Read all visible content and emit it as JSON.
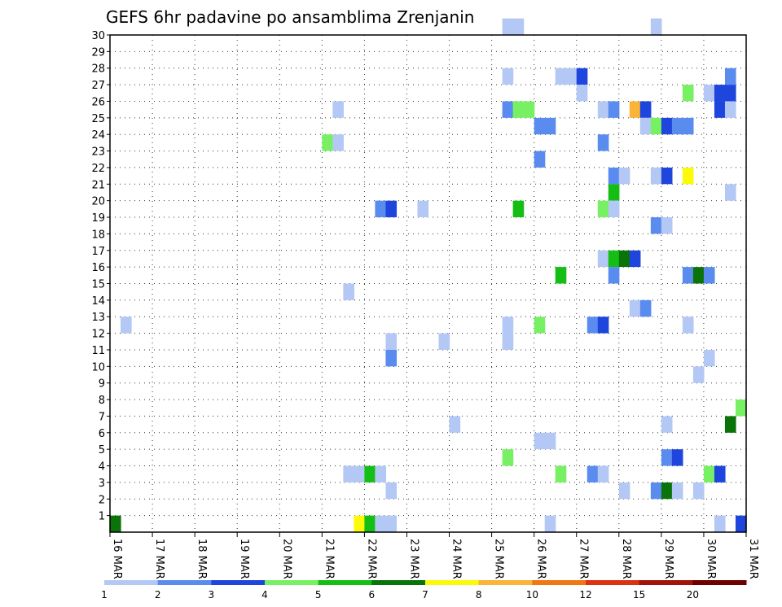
{
  "chart_data": {
    "type": "heatmap",
    "title": "GEFS 6hr padavine po ansamblima Zrenjanin",
    "xlabel": "",
    "ylabel": "",
    "x_ticks": [
      "16 MAR",
      "17 MAR",
      "18 MAR",
      "19 MAR",
      "20 MAR",
      "21 MAR",
      "22 MAR",
      "23 MAR",
      "24 MAR",
      "25 MAR",
      "26 MAR",
      "27 MAR",
      "28 MAR",
      "29 MAR",
      "30 MAR",
      "31 MAR"
    ],
    "y_ticks": [
      1,
      2,
      3,
      4,
      5,
      6,
      7,
      8,
      9,
      10,
      11,
      12,
      13,
      14,
      15,
      16,
      17,
      18,
      19,
      20,
      21,
      22,
      23,
      24,
      25,
      26,
      27,
      28,
      29,
      30
    ],
    "x_range": [
      0,
      15
    ],
    "y_range": [
      0,
      30
    ],
    "step_days": 0.25,
    "grid": true,
    "colorbar": {
      "tick_labels": [
        "1",
        "2",
        "3",
        "4",
        "5",
        "6",
        "7",
        "8",
        "10",
        "12",
        "15",
        "20"
      ],
      "colors": [
        "#b4c8f5",
        "#5a8cf0",
        "#1e46dc",
        "#78f064",
        "#14be14",
        "#0a730a",
        "#fafa0a",
        "#fab437",
        "#f07814",
        "#dc3214",
        "#a0140a",
        "#6e0000"
      ]
    },
    "cells": [
      [
        0.0,
        0,
        5
      ],
      [
        0.25,
        12,
        0
      ],
      [
        5.25,
        25,
        0
      ],
      [
        5.0,
        23,
        3
      ],
      [
        5.25,
        23,
        0
      ],
      [
        5.5,
        14,
        0
      ],
      [
        5.5,
        3,
        0
      ],
      [
        5.75,
        0,
        6
      ],
      [
        6.0,
        0,
        4
      ],
      [
        5.75,
        3,
        0
      ],
      [
        6.0,
        3,
        4
      ],
      [
        6.25,
        3,
        0
      ],
      [
        6.5,
        2,
        0
      ],
      [
        6.25,
        0,
        0
      ],
      [
        6.5,
        0,
        0
      ],
      [
        6.5,
        11,
        0
      ],
      [
        6.5,
        10,
        1
      ],
      [
        6.25,
        19,
        1
      ],
      [
        6.5,
        19,
        2
      ],
      [
        7.25,
        19,
        0
      ],
      [
        7.75,
        11,
        0
      ],
      [
        8.0,
        6,
        0
      ],
      [
        9.25,
        30,
        0
      ],
      [
        9.5,
        30,
        0
      ],
      [
        9.25,
        27,
        0
      ],
      [
        9.25,
        25,
        1
      ],
      [
        9.5,
        25,
        3
      ],
      [
        9.75,
        25,
        3
      ],
      [
        9.25,
        12,
        0
      ],
      [
        9.25,
        11,
        0
      ],
      [
        9.25,
        4,
        3
      ],
      [
        9.5,
        19,
        4
      ],
      [
        10.0,
        24,
        1
      ],
      [
        10.25,
        24,
        1
      ],
      [
        10.0,
        22,
        1
      ],
      [
        10.0,
        12,
        3
      ],
      [
        10.0,
        5,
        0
      ],
      [
        10.25,
        5,
        0
      ],
      [
        10.25,
        0,
        0
      ],
      [
        10.5,
        27,
        0
      ],
      [
        10.75,
        27,
        0
      ],
      [
        11.0,
        27,
        2
      ],
      [
        11.0,
        26,
        0
      ],
      [
        10.5,
        15,
        4
      ],
      [
        10.5,
        3,
        3
      ],
      [
        11.25,
        12,
        1
      ],
      [
        11.25,
        3,
        1
      ],
      [
        11.5,
        3,
        0
      ],
      [
        11.5,
        25,
        0
      ],
      [
        11.75,
        25,
        1
      ],
      [
        11.5,
        23,
        1
      ],
      [
        11.75,
        21,
        1
      ],
      [
        12.0,
        21,
        0
      ],
      [
        11.75,
        20,
        4
      ],
      [
        11.5,
        19,
        3
      ],
      [
        11.75,
        19,
        0
      ],
      [
        11.5,
        16,
        0
      ],
      [
        11.75,
        16,
        4
      ],
      [
        12.0,
        16,
        5
      ],
      [
        12.25,
        16,
        2
      ],
      [
        11.75,
        15,
        1
      ],
      [
        11.5,
        12,
        2
      ],
      [
        12.0,
        2,
        0
      ],
      [
        12.25,
        25,
        7
      ],
      [
        12.5,
        25,
        2
      ],
      [
        12.5,
        24,
        0
      ],
      [
        12.75,
        24,
        3
      ],
      [
        13.0,
        24,
        2
      ],
      [
        13.25,
        24,
        1
      ],
      [
        13.5,
        24,
        1
      ],
      [
        12.25,
        13,
        0
      ],
      [
        12.5,
        13,
        1
      ],
      [
        12.75,
        30,
        0
      ],
      [
        12.75,
        21,
        0
      ],
      [
        13.0,
        21,
        2
      ],
      [
        12.75,
        18,
        1
      ],
      [
        13.0,
        18,
        0
      ],
      [
        13.0,
        6,
        0
      ],
      [
        13.0,
        4,
        1
      ],
      [
        13.25,
        4,
        2
      ],
      [
        12.75,
        2,
        1
      ],
      [
        13.0,
        2,
        5
      ],
      [
        13.25,
        2,
        0
      ],
      [
        13.5,
        26,
        3
      ],
      [
        13.5,
        21,
        6
      ],
      [
        13.5,
        15,
        1
      ],
      [
        13.75,
        15,
        5
      ],
      [
        14.0,
        15,
        1
      ],
      [
        13.5,
        12,
        0
      ],
      [
        14.0,
        10,
        0
      ],
      [
        13.75,
        9,
        0
      ],
      [
        13.75,
        2,
        0
      ],
      [
        14.0,
        3,
        3
      ],
      [
        14.25,
        3,
        2
      ],
      [
        14.0,
        26,
        0
      ],
      [
        14.25,
        26,
        2
      ],
      [
        14.5,
        26,
        2
      ],
      [
        14.5,
        27,
        1
      ],
      [
        14.25,
        25,
        2
      ],
      [
        14.5,
        25,
        0
      ],
      [
        14.5,
        20,
        0
      ],
      [
        14.75,
        7,
        3
      ],
      [
        14.5,
        6,
        5
      ],
      [
        14.25,
        0,
        0
      ],
      [
        14.75,
        0,
        2
      ]
    ]
  }
}
